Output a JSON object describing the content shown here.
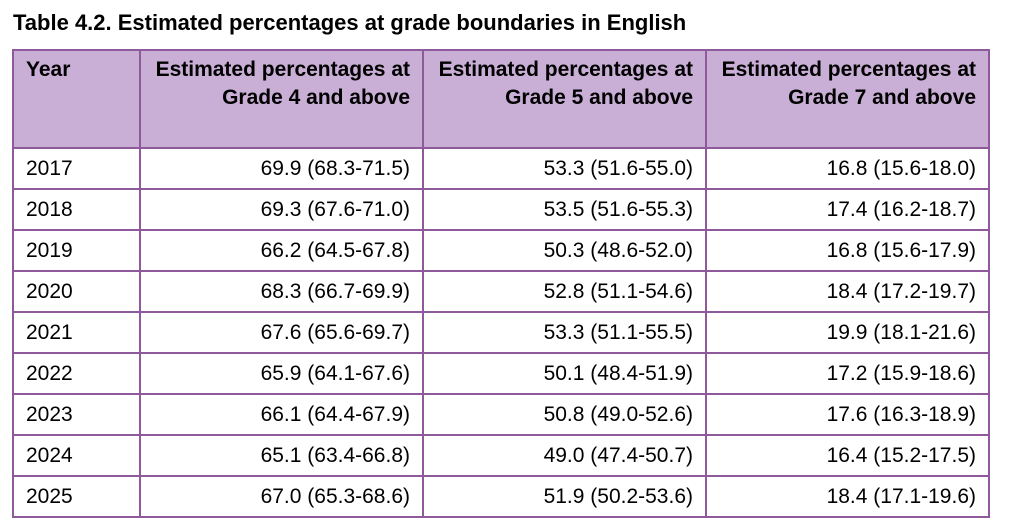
{
  "caption": "Table 4.2. Estimated percentages at grade boundaries in English",
  "table": {
    "headers": [
      "Year",
      "Estimated percentages at Grade 4 and above",
      "Estimated percentages at Grade 5 and above",
      "Estimated percentages at Grade 7 and above"
    ],
    "rows": [
      [
        "2017",
        "69.9 (68.3-71.5)",
        "53.3 (51.6-55.0)",
        "16.8 (15.6-18.0)"
      ],
      [
        "2018",
        "69.3 (67.6-71.0)",
        "53.5 (51.6-55.3)",
        "17.4 (16.2-18.7)"
      ],
      [
        "2019",
        "66.2 (64.5-67.8)",
        "50.3 (48.6-52.0)",
        "16.8 (15.6-17.9)"
      ],
      [
        "2020",
        "68.3 (66.7-69.9)",
        "52.8 (51.1-54.6)",
        "18.4 (17.2-19.7)"
      ],
      [
        "2021",
        "67.6 (65.6-69.7)",
        "53.3 (51.1-55.5)",
        "19.9 (18.1-21.6)"
      ],
      [
        "2022",
        "65.9 (64.1-67.6)",
        "50.1 (48.4-51.9)",
        "17.2 (15.9-18.6)"
      ],
      [
        "2023",
        "66.1 (64.4-67.9)",
        "50.8 (49.0-52.6)",
        "17.6 (16.3-18.9)"
      ],
      [
        "2024",
        "65.1 (63.4-66.8)",
        "49.0 (47.4-50.7)",
        "16.4 (15.2-17.5)"
      ],
      [
        "2025",
        "67.0 (65.3-68.6)",
        "51.9 (50.2-53.6)",
        "18.4 (17.1-19.6)"
      ]
    ]
  },
  "colors": {
    "header_background": "#c9aed6",
    "border": "#8e5a9c"
  }
}
